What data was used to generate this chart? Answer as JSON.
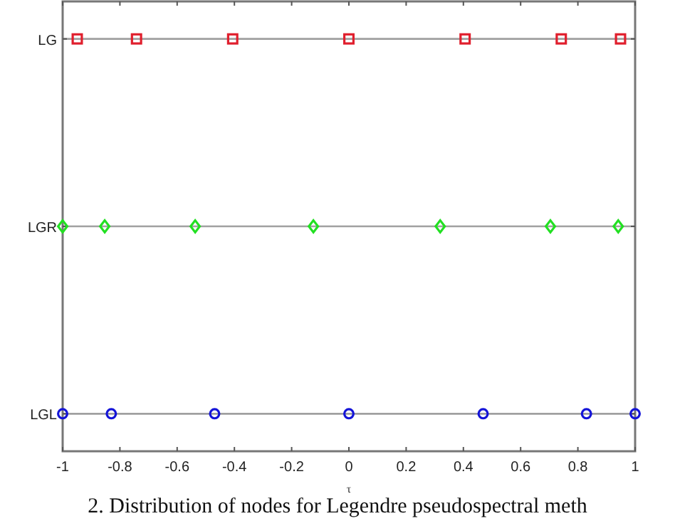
{
  "chart_data": {
    "type": "scatter",
    "orientation": "horizontal",
    "xlabel": "τ",
    "xlim": [
      -1,
      1
    ],
    "xticks": [
      -1,
      -0.8,
      -0.6,
      -0.4,
      -0.2,
      0,
      0.2,
      0.4,
      0.6,
      0.8,
      1
    ],
    "categories": [
      "LG",
      "LGR",
      "LGL"
    ],
    "series": [
      {
        "color": "#e01f2d",
        "marker": "square",
        "x": [
          "LG",
          "LG",
          "LG",
          "LG",
          "LG",
          "LG",
          "LG"
        ],
        "values": [
          -0.949,
          -0.742,
          -0.406,
          0,
          0.406,
          0.742,
          0.949
        ]
      },
      {
        "color": "#22e022",
        "marker": "diamond",
        "x": [
          "LGR",
          "LGR",
          "LGR",
          "LGR",
          "LGR",
          "LGR",
          "LGR"
        ],
        "values": [
          -1,
          -0.853,
          -0.537,
          -0.124,
          0.319,
          0.704,
          0.941
        ]
      },
      {
        "color": "#1414d8",
        "marker": "circle",
        "x": [
          "LGL",
          "LGL",
          "LGL",
          "LGL",
          "LGL",
          "LGL",
          "LGL"
        ],
        "values": [
          -1,
          -0.83,
          -0.469,
          0,
          0.469,
          0.83,
          1
        ]
      }
    ],
    "ref_lines": [
      {
        "axis": "y",
        "value": "LG",
        "color": "#a0a0a0"
      },
      {
        "axis": "y",
        "value": "LGR",
        "color": "#a0a0a0"
      },
      {
        "axis": "y",
        "value": "LGL",
        "color": "#a0a0a0"
      }
    ],
    "annotations": [
      "2. Distribution of nodes for Legendre pseudospectral meth"
    ]
  }
}
